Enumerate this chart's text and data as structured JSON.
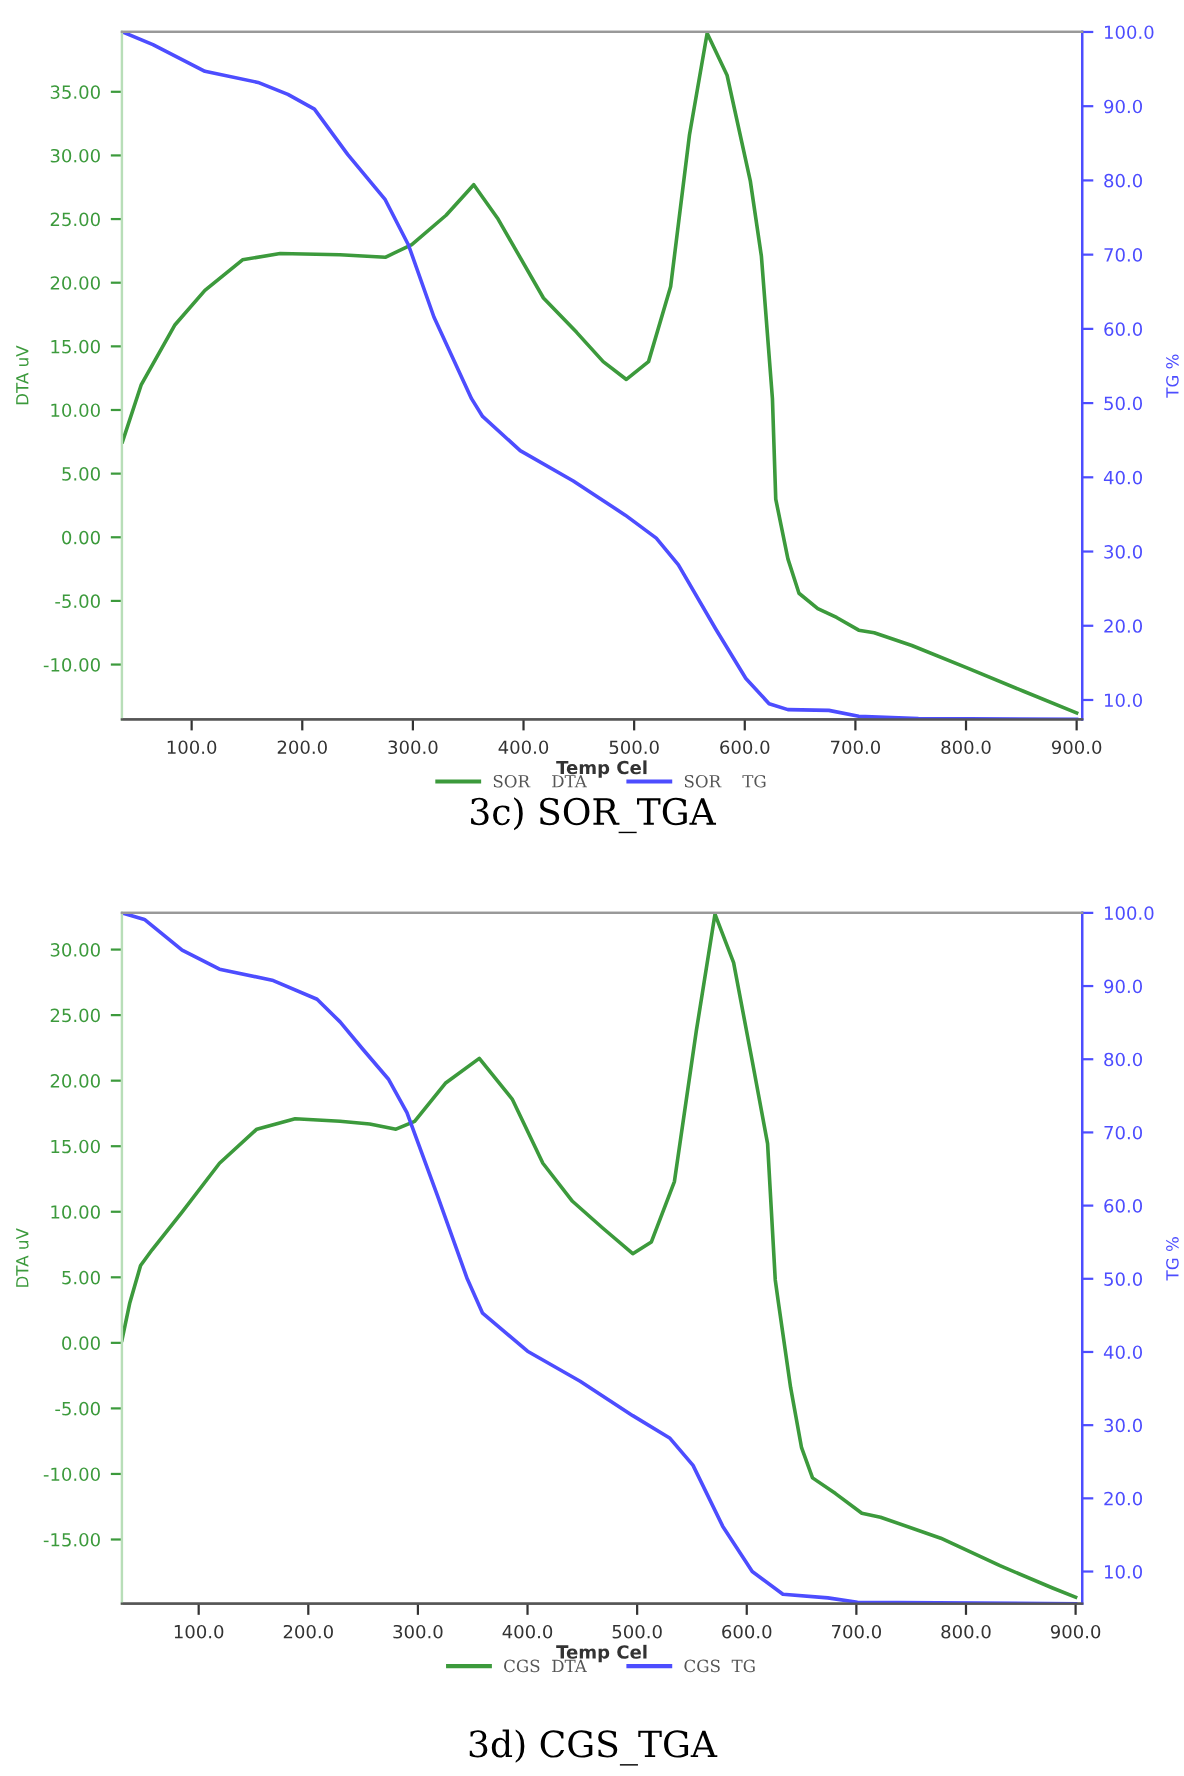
{
  "chart_data": [
    {
      "type": "line",
      "xlabel": "Temp Cel",
      "ylabel": "DTA uV",
      "y2label": "TG %",
      "legend": "bottom",
      "annotations": [
        "3c) SOR_TGA"
      ],
      "xlim": [
        37,
        905
      ],
      "ylim": [
        -14.3,
        39.7
      ],
      "y2lim": [
        7.4,
        100
      ],
      "xticks": [
        {
          "value": 100,
          "label": "100.0"
        },
        {
          "value": 200,
          "label": "200.0"
        },
        {
          "value": 300,
          "label": "300.0"
        },
        {
          "value": 400,
          "label": "400.0"
        },
        {
          "value": 500,
          "label": "500.0"
        },
        {
          "value": 600,
          "label": "600.0"
        },
        {
          "value": 700,
          "label": "700.0"
        },
        {
          "value": 800,
          "label": "800.0"
        },
        {
          "value": 900,
          "label": "900.0"
        }
      ],
      "yticks": [
        {
          "value": -10,
          "label": "-10.00"
        },
        {
          "value": -5,
          "label": "-5.00"
        },
        {
          "value": 0,
          "label": "0.00"
        },
        {
          "value": 5,
          "label": "5.00"
        },
        {
          "value": 10,
          "label": "10.00"
        },
        {
          "value": 15,
          "label": "15.00"
        },
        {
          "value": 20,
          "label": "20.00"
        },
        {
          "value": 25,
          "label": "25.00"
        },
        {
          "value": 30,
          "label": "30.00"
        },
        {
          "value": 35,
          "label": "35.00"
        }
      ],
      "y2ticks": [
        {
          "value": 10,
          "label": "10.0"
        },
        {
          "value": 20,
          "label": "20.0"
        },
        {
          "value": 30,
          "label": "30.0"
        },
        {
          "value": 40,
          "label": "40.0"
        },
        {
          "value": 50,
          "label": "50.0"
        },
        {
          "value": 60,
          "label": "60.0"
        },
        {
          "value": 70,
          "label": "70.0"
        },
        {
          "value": 80,
          "label": "80.0"
        },
        {
          "value": 90,
          "label": "90.0"
        },
        {
          "value": 100,
          "label": "100.0"
        }
      ],
      "series": [
        {
          "name": "SOR    DTA",
          "color": "#3c9a3c",
          "x": [
            37.5,
            54.5,
            85,
            112,
            146,
            180,
            234,
            275,
            299,
            330,
            355,
            377,
            418,
            448,
            472,
            493,
            513,
            533,
            550,
            566,
            584,
            605,
            615,
            625,
            628,
            639,
            649,
            666,
            683,
            703,
            717,
            751,
            802,
            852,
            900
          ],
          "values": [
            7.5,
            12.0,
            16.7,
            19.4,
            21.8,
            22.3,
            22.2,
            22.0,
            23.0,
            25.3,
            27.7,
            25.0,
            18.8,
            16.1,
            13.8,
            12.4,
            13.8,
            19.7,
            31.6,
            39.6,
            36.3,
            28.0,
            22.1,
            10.9,
            3.0,
            -1.7,
            -4.4,
            -5.6,
            -6.3,
            -7.3,
            -7.5,
            -8.5,
            -10.3,
            -12.1,
            -13.8
          ]
        },
        {
          "name": "SOR    TG",
          "color": "#4d4dff",
          "axis": "y2",
          "x": [
            37.5,
            65,
            112,
            160,
            187,
            211,
            241,
            275,
            296,
            319,
            353,
            363,
            397,
            445,
            492,
            520,
            540,
            574,
            601,
            622,
            639,
            676,
            703,
            757,
            900
          ],
          "values": [
            100,
            98.3,
            94.7,
            93.2,
            91.6,
            89.6,
            83.5,
            77.4,
            71.3,
            61.6,
            50.6,
            48.2,
            43.6,
            39.5,
            34.9,
            31.8,
            28.2,
            19.5,
            12.9,
            9.5,
            8.7,
            8.6,
            7.8,
            7.5,
            7.4
          ]
        }
      ]
    },
    {
      "type": "line",
      "xlabel": "Temp Cel",
      "ylabel": "DTA uV",
      "y2label": "TG %",
      "legend": "bottom",
      "annotations": [
        "3d) CGS_TGA"
      ],
      "xlim": [
        30,
        906
      ],
      "ylim": [
        -19.9,
        32.8
      ],
      "y2lim": [
        5.6,
        100
      ],
      "xticks": [
        {
          "value": 100,
          "label": "100.0"
        },
        {
          "value": 200,
          "label": "200.0"
        },
        {
          "value": 300,
          "label": "300.0"
        },
        {
          "value": 400,
          "label": "400.0"
        },
        {
          "value": 500,
          "label": "500.0"
        },
        {
          "value": 600,
          "label": "600.0"
        },
        {
          "value": 700,
          "label": "700.0"
        },
        {
          "value": 800,
          "label": "800.0"
        },
        {
          "value": 900,
          "label": "900.0"
        }
      ],
      "yticks": [
        {
          "value": -15,
          "label": "-15.00"
        },
        {
          "value": -10,
          "label": "-10.00"
        },
        {
          "value": -5,
          "label": "-5.00"
        },
        {
          "value": 0,
          "label": "0.00"
        },
        {
          "value": 5,
          "label": "5.00"
        },
        {
          "value": 10,
          "label": "10.00"
        },
        {
          "value": 15,
          "label": "15.00"
        },
        {
          "value": 20,
          "label": "20.00"
        },
        {
          "value": 25,
          "label": "25.00"
        },
        {
          "value": 30,
          "label": "30.00"
        }
      ],
      "y2ticks": [
        {
          "value": 10,
          "label": "10.0"
        },
        {
          "value": 20,
          "label": "20.0"
        },
        {
          "value": 30,
          "label": "30.0"
        },
        {
          "value": 40,
          "label": "40.0"
        },
        {
          "value": 50,
          "label": "50.0"
        },
        {
          "value": 60,
          "label": "60.0"
        },
        {
          "value": 70,
          "label": "70.0"
        },
        {
          "value": 80,
          "label": "80.0"
        },
        {
          "value": 90,
          "label": "90.0"
        },
        {
          "value": 100,
          "label": "100.0"
        }
      ],
      "series": [
        {
          "name": "CGS  DTA",
          "color": "#3c9a3c",
          "x": [
            30,
            37,
            47,
            57.5,
            85,
            119,
            153,
            188,
            229,
            256,
            280,
            297,
            325,
            356,
            386,
            414,
            441,
            468,
            496,
            513,
            534,
            554,
            571,
            588,
            605,
            619,
            626,
            629,
            640,
            650,
            660,
            681,
            705,
            722,
            777,
            831,
            879,
            900
          ],
          "values": [
            0.2,
            3.0,
            5.9,
            7.1,
            10.0,
            13.7,
            16.3,
            17.1,
            16.9,
            16.7,
            16.3,
            16.9,
            19.8,
            21.7,
            18.6,
            13.7,
            10.8,
            8.8,
            6.8,
            7.7,
            12.3,
            23.8,
            32.7,
            29.0,
            21.5,
            15.2,
            4.8,
            3.0,
            -3.4,
            -8.0,
            -10.3,
            -11.5,
            -13.0,
            -13.3,
            -14.9,
            -17.0,
            -18.7,
            -19.4
          ]
        },
        {
          "name": "CGS  TG",
          "color": "#4d4dff",
          "axis": "y2",
          "x": [
            30,
            50.5,
            84.9,
            119,
            167,
            208,
            229,
            249,
            273,
            290,
            318,
            345,
            359,
            400,
            448,
            496,
            530,
            551,
            578,
            605,
            633,
            674,
            701,
            900
          ],
          "values": [
            100,
            99.1,
            94.9,
            92.3,
            90.8,
            88.2,
            85.1,
            81.5,
            77.3,
            72.7,
            61.3,
            50.0,
            45.3,
            40.1,
            36.0,
            31.3,
            28.2,
            24.5,
            16.2,
            10.0,
            6.9,
            6.4,
            5.8,
            5.6
          ]
        }
      ]
    }
  ]
}
